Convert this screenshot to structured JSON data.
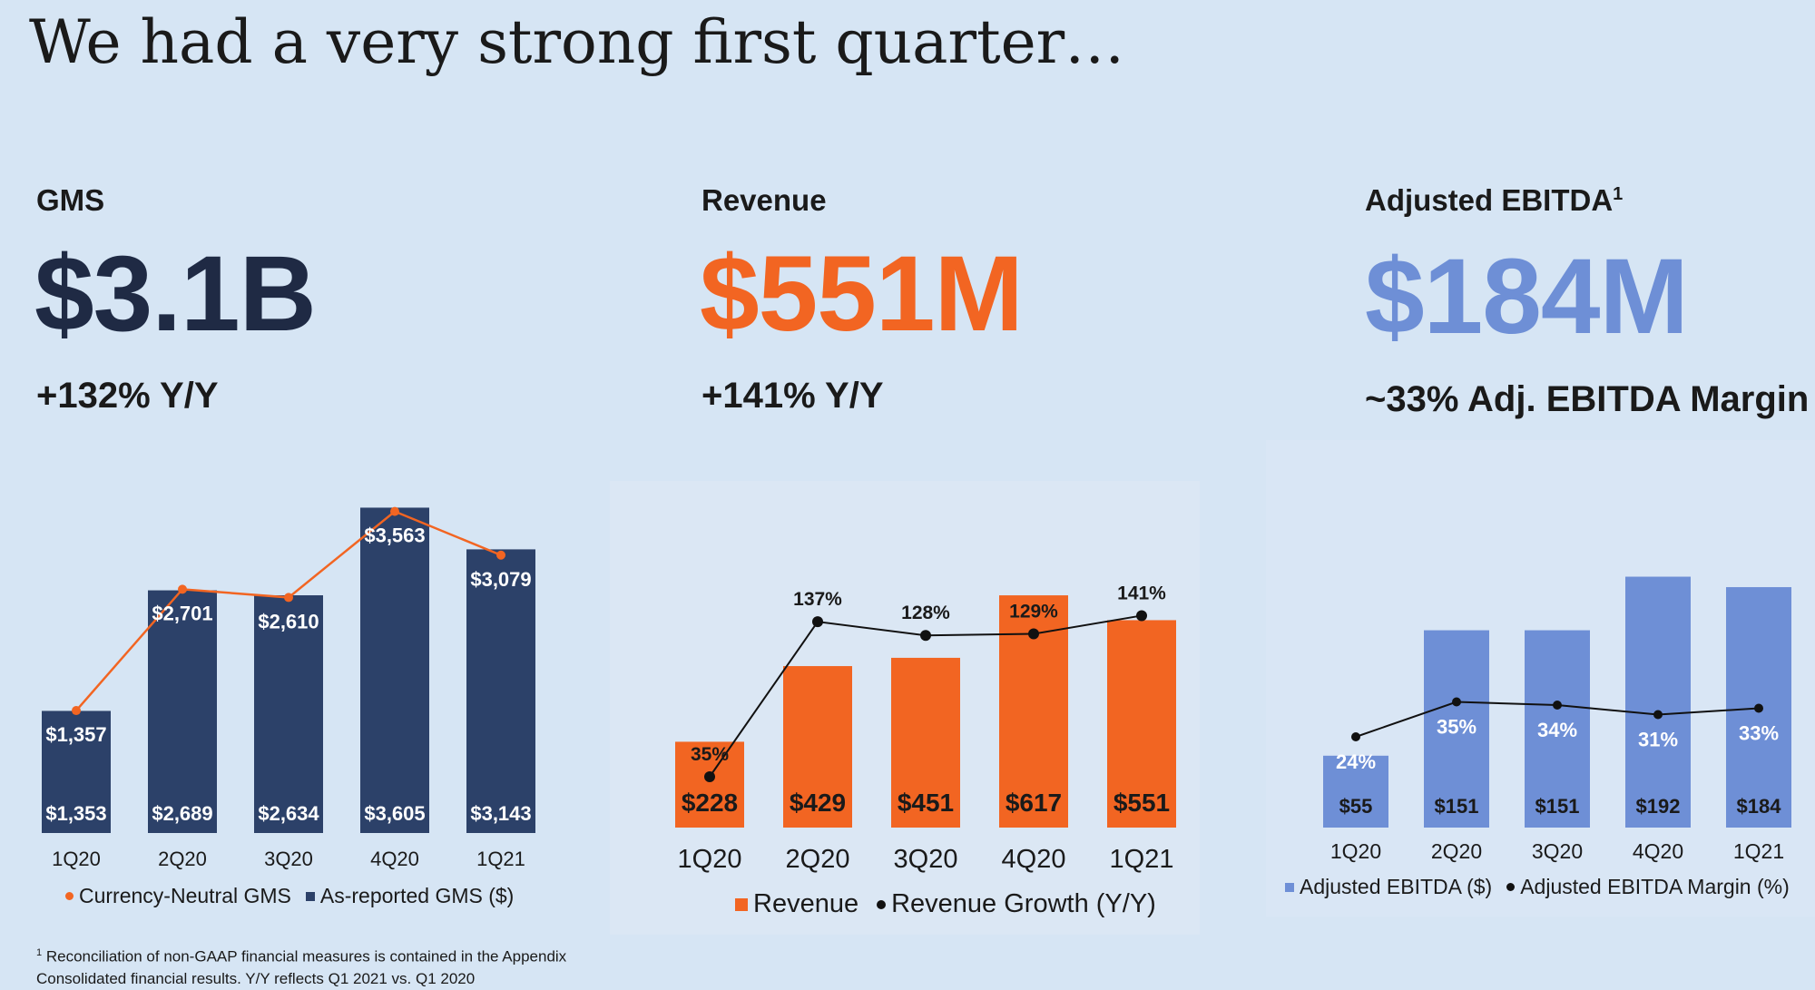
{
  "title": "We had a very strong first quarter…",
  "kpis": {
    "gms": {
      "label": "GMS",
      "value": "$3.1B",
      "sub": "+132% Y/Y",
      "color": "#1f2a44"
    },
    "revenue": {
      "label": "Revenue",
      "value": "$551M",
      "sub": "+141% Y/Y",
      "color": "#f26522"
    },
    "ebitda": {
      "label": "Adjusted EBITDA",
      "label_sup": "1",
      "value": "$184M",
      "sub": "~33% Adj. EBITDA Margin",
      "color": "#6e8fd6"
    }
  },
  "colors": {
    "gms_bar": "#2c4169",
    "gms_line": "#f26522",
    "revenue_bar": "#f26522",
    "revenue_line": "#111111",
    "ebitda_bar": "#6e8fd6",
    "ebitda_line": "#111111",
    "panel_bg_rev": "#dbe7f4",
    "panel_bg_ebitda": "#d9e6f5"
  },
  "legends": {
    "gms": [
      "Currency-Neutral GMS",
      "As-reported GMS ($)"
    ],
    "revenue": [
      "Revenue",
      "Revenue Growth (Y/Y)"
    ],
    "ebitda": [
      "Adjusted EBITDA ($)",
      "Adjusted EBITDA Margin (%)"
    ]
  },
  "footnote": {
    "sup": "1",
    "line1": "Reconciliation of non-GAAP financial measures is contained in the Appendix",
    "line2": "Consolidated financial results. Y/Y reflects Q1 2021 vs. Q1 2020"
  },
  "chart_data": [
    {
      "id": "gms",
      "type": "bar",
      "title": "GMS",
      "categories": [
        "1Q20",
        "2Q20",
        "3Q20",
        "4Q20",
        "1Q21"
      ],
      "series": [
        {
          "name": "As-reported GMS ($)",
          "kind": "bar",
          "values": [
            1353,
            2689,
            2634,
            3605,
            3143
          ],
          "labels": [
            "$1,353",
            "$2,689",
            "$2,634",
            "$3,605",
            "$3,143"
          ]
        },
        {
          "name": "Currency-Neutral GMS",
          "kind": "line",
          "values": [
            1357,
            2701,
            2610,
            3563,
            3079
          ],
          "labels": [
            "$1,357",
            "$2,701",
            "$2,610",
            "$3,563",
            "$3,079"
          ]
        }
      ],
      "ylim": [
        0,
        3700
      ]
    },
    {
      "id": "revenue",
      "type": "bar",
      "title": "Revenue",
      "categories": [
        "1Q20",
        "2Q20",
        "3Q20",
        "4Q20",
        "1Q21"
      ],
      "series": [
        {
          "name": "Revenue",
          "kind": "bar",
          "values": [
            228,
            429,
            451,
            617,
            551
          ],
          "labels": [
            "$228",
            "$429",
            "$451",
            "$617",
            "$551"
          ]
        },
        {
          "name": "Revenue Growth (Y/Y)",
          "kind": "line",
          "values": [
            35,
            137,
            128,
            129,
            141
          ],
          "labels": [
            "35%",
            "137%",
            "128%",
            "129%",
            "141%"
          ]
        }
      ]
    },
    {
      "id": "ebitda",
      "type": "bar",
      "title": "Adjusted EBITDA",
      "categories": [
        "1Q20",
        "2Q20",
        "3Q20",
        "4Q20",
        "1Q21"
      ],
      "series": [
        {
          "name": "Adjusted EBITDA ($)",
          "kind": "bar",
          "values": [
            55,
            151,
            151,
            192,
            184
          ],
          "labels": [
            "$55",
            "$151",
            "$151",
            "$192",
            "$184"
          ]
        },
        {
          "name": "Adjusted EBITDA Margin (%)",
          "kind": "line",
          "values": [
            24,
            35,
            34,
            31,
            33
          ],
          "labels": [
            "24%",
            "35%",
            "34%",
            "31%",
            "33%"
          ]
        }
      ]
    }
  ]
}
